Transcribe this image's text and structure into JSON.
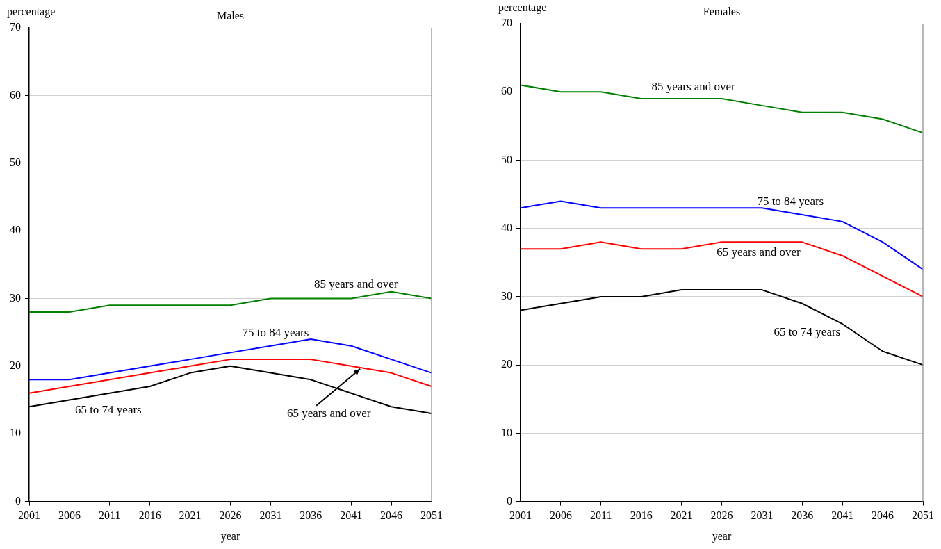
{
  "chart_data": [
    {
      "type": "line",
      "title": "Males",
      "ylabel": "percentage",
      "xlabel": "year",
      "categories": [
        "2001",
        "2006",
        "2011",
        "2016",
        "2021",
        "2026",
        "2031",
        "2036",
        "2041",
        "2046",
        "2051"
      ],
      "series": [
        {
          "name": "85 years and over",
          "color": "#008000",
          "values": [
            28,
            28,
            29,
            29,
            29,
            29,
            30,
            30,
            30,
            31,
            30
          ]
        },
        {
          "name": "75 to 84 years",
          "color": "#0000ff",
          "values": [
            18,
            18,
            19,
            20,
            21,
            22,
            23,
            24,
            23,
            21,
            19
          ]
        },
        {
          "name": "65 years and over",
          "color": "#ff0000",
          "values": [
            16,
            17,
            18,
            19,
            20,
            21,
            21,
            21,
            20,
            19,
            17
          ]
        },
        {
          "name": "65 to 74 years",
          "color": "#000000",
          "values": [
            14,
            15,
            16,
            17,
            19,
            20,
            19,
            18,
            16,
            14,
            13
          ]
        }
      ],
      "ylim": [
        0,
        70
      ],
      "yticks": [
        0,
        10,
        20,
        30,
        40,
        50,
        60,
        70
      ],
      "grid": "y"
    },
    {
      "type": "line",
      "title": "Females",
      "ylabel": "percentage",
      "xlabel": "year",
      "categories": [
        "2001",
        "2006",
        "2011",
        "2016",
        "2021",
        "2026",
        "2031",
        "2036",
        "2041",
        "2046",
        "2051"
      ],
      "series": [
        {
          "name": "85 years and over",
          "color": "#008000",
          "values": [
            61,
            60,
            60,
            59,
            59,
            59,
            58,
            57,
            57,
            56,
            54
          ]
        },
        {
          "name": "75 to 84 years",
          "color": "#0000ff",
          "values": [
            43,
            44,
            43,
            43,
            43,
            43,
            43,
            42,
            41,
            38,
            34
          ]
        },
        {
          "name": "65 years and over",
          "color": "#ff0000",
          "values": [
            37,
            37,
            38,
            37,
            37,
            38,
            38,
            38,
            36,
            33,
            30
          ]
        },
        {
          "name": "65 to 74 years",
          "color": "#000000",
          "values": [
            28,
            29,
            30,
            30,
            31,
            31,
            31,
            29,
            26,
            22,
            20
          ]
        }
      ],
      "ylim": [
        0,
        70
      ],
      "yticks": [
        0,
        10,
        20,
        30,
        40,
        50,
        60,
        70
      ],
      "grid": "y"
    }
  ]
}
